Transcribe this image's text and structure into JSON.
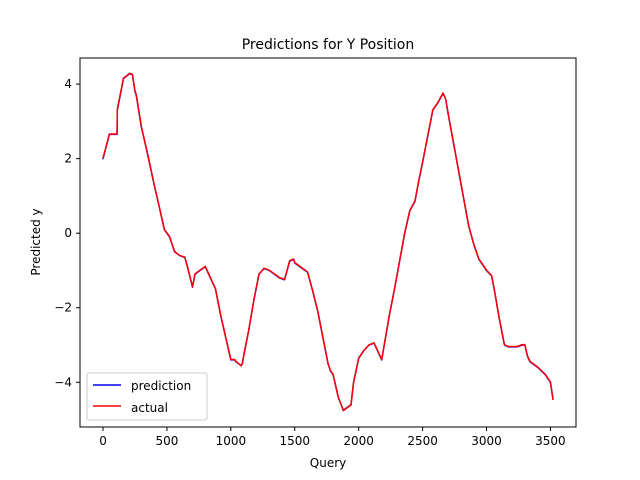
{
  "chart_data": {
    "type": "line",
    "title": "Predictions for Y Position",
    "xlabel": "Query",
    "ylabel": "Predicted y",
    "xlim": [
      -180,
      3700
    ],
    "ylim": [
      -5.2,
      4.7
    ],
    "xticks": [
      0,
      500,
      1000,
      1500,
      2000,
      2500,
      3000,
      3500
    ],
    "xtick_labels": [
      "0",
      "500",
      "1000",
      "1500",
      "2000",
      "2500",
      "3000",
      "3500"
    ],
    "yticks": [
      -4,
      -2,
      0,
      2,
      4
    ],
    "ytick_labels": [
      "−4",
      "−2",
      "0",
      "2",
      "4"
    ],
    "grid": false,
    "legend_position": "lower-left",
    "series": [
      {
        "name": "prediction",
        "color": "#0000ff",
        "x": [
          0,
          50,
          110,
          112,
          160,
          210,
          230,
          250,
          260,
          300,
          350,
          400,
          450,
          480,
          500,
          520,
          530,
          560,
          600,
          640,
          660,
          700,
          720,
          760,
          800,
          840,
          880,
          920,
          960,
          1000,
          1030,
          1040,
          1080,
          1090,
          1100,
          1140,
          1180,
          1220,
          1260,
          1300,
          1340,
          1380,
          1420,
          1460,
          1490,
          1500,
          1540,
          1600,
          1640,
          1680,
          1720,
          1760,
          1780,
          1800,
          1840,
          1880,
          1900,
          1940,
          1960,
          2000,
          2040,
          2080,
          2120,
          2140,
          2180,
          2200,
          2240,
          2280,
          2320,
          2360,
          2400,
          2440,
          2470,
          2500,
          2540,
          2580,
          2620,
          2660,
          2680,
          2700,
          2740,
          2780,
          2820,
          2860,
          2900,
          2940,
          2980,
          3000,
          3040,
          3060,
          3100,
          3140,
          3170,
          3180,
          3200,
          3240,
          3280,
          3300,
          3320,
          3340,
          3400,
          3460,
          3480,
          3500,
          3520
        ],
        "y": [
          2.0,
          2.65,
          2.65,
          3.3,
          4.15,
          4.28,
          4.25,
          3.8,
          3.7,
          2.85,
          2.1,
          1.3,
          0.55,
          0.1,
          0.0,
          -0.1,
          -0.2,
          -0.5,
          -0.6,
          -0.65,
          -0.9,
          -1.45,
          -1.1,
          -1.0,
          -0.9,
          -1.2,
          -1.5,
          -2.2,
          -2.8,
          -3.4,
          -3.4,
          -3.45,
          -3.55,
          -3.5,
          -3.3,
          -2.6,
          -1.8,
          -1.1,
          -0.95,
          -1.0,
          -1.1,
          -1.2,
          -1.25,
          -0.75,
          -0.7,
          -0.8,
          -0.9,
          -1.05,
          -1.55,
          -2.1,
          -2.8,
          -3.5,
          -3.7,
          -3.8,
          -4.4,
          -4.75,
          -4.7,
          -4.6,
          -4.0,
          -3.35,
          -3.15,
          -3.0,
          -2.95,
          -3.1,
          -3.4,
          -3.0,
          -2.2,
          -1.5,
          -0.75,
          0.0,
          0.6,
          0.85,
          1.4,
          1.9,
          2.6,
          3.3,
          3.5,
          3.75,
          3.6,
          3.2,
          2.45,
          1.7,
          0.95,
          0.2,
          -0.3,
          -0.7,
          -0.9,
          -1.0,
          -1.15,
          -1.5,
          -2.3,
          -3.0,
          -3.05,
          -3.05,
          -3.05,
          -3.05,
          -3.0,
          -3.0,
          -3.3,
          -3.45,
          -3.6,
          -3.8,
          -3.9,
          -4.0,
          -4.45
        ]
      },
      {
        "name": "actual",
        "color": "#ff0000",
        "x": [
          0,
          50,
          110,
          112,
          160,
          210,
          230,
          250,
          260,
          300,
          350,
          400,
          450,
          480,
          500,
          520,
          530,
          560,
          600,
          640,
          660,
          700,
          720,
          760,
          800,
          840,
          880,
          920,
          960,
          1000,
          1030,
          1040,
          1080,
          1090,
          1100,
          1140,
          1180,
          1220,
          1260,
          1300,
          1340,
          1380,
          1420,
          1460,
          1490,
          1500,
          1540,
          1600,
          1640,
          1680,
          1720,
          1760,
          1780,
          1800,
          1840,
          1880,
          1900,
          1940,
          1960,
          2000,
          2040,
          2080,
          2120,
          2140,
          2180,
          2200,
          2240,
          2280,
          2320,
          2360,
          2400,
          2440,
          2470,
          2500,
          2540,
          2580,
          2620,
          2660,
          2680,
          2700,
          2740,
          2780,
          2820,
          2860,
          2900,
          2940,
          2980,
          3000,
          3040,
          3060,
          3100,
          3140,
          3170,
          3180,
          3200,
          3240,
          3280,
          3300,
          3320,
          3340,
          3400,
          3460,
          3480,
          3500,
          3520
        ],
        "y": [
          2.02,
          2.66,
          2.66,
          3.32,
          4.16,
          4.29,
          4.26,
          3.82,
          3.72,
          2.86,
          2.11,
          1.31,
          0.56,
          0.1,
          0.0,
          -0.08,
          -0.19,
          -0.49,
          -0.6,
          -0.64,
          -0.89,
          -1.44,
          -1.09,
          -0.99,
          -0.89,
          -1.19,
          -1.49,
          -2.19,
          -2.79,
          -3.39,
          -3.39,
          -3.44,
          -3.56,
          -3.5,
          -3.3,
          -2.6,
          -1.79,
          -1.1,
          -0.94,
          -0.99,
          -1.09,
          -1.19,
          -1.24,
          -0.74,
          -0.69,
          -0.79,
          -0.89,
          -1.04,
          -1.54,
          -2.09,
          -2.79,
          -3.49,
          -3.69,
          -3.79,
          -4.39,
          -4.76,
          -4.71,
          -4.61,
          -4.01,
          -3.36,
          -3.15,
          -3.0,
          -2.94,
          -3.09,
          -3.39,
          -3.0,
          -2.2,
          -1.5,
          -0.75,
          0.0,
          0.61,
          0.86,
          1.41,
          1.91,
          2.61,
          3.31,
          3.51,
          3.76,
          3.61,
          3.21,
          2.46,
          1.71,
          0.96,
          0.21,
          -0.29,
          -0.69,
          -0.89,
          -0.99,
          -1.14,
          -1.49,
          -2.29,
          -2.99,
          -3.04,
          -3.04,
          -3.04,
          -3.04,
          -2.99,
          -2.99,
          -3.29,
          -3.44,
          -3.59,
          -3.79,
          -3.89,
          -3.99,
          -4.46
        ]
      }
    ]
  }
}
